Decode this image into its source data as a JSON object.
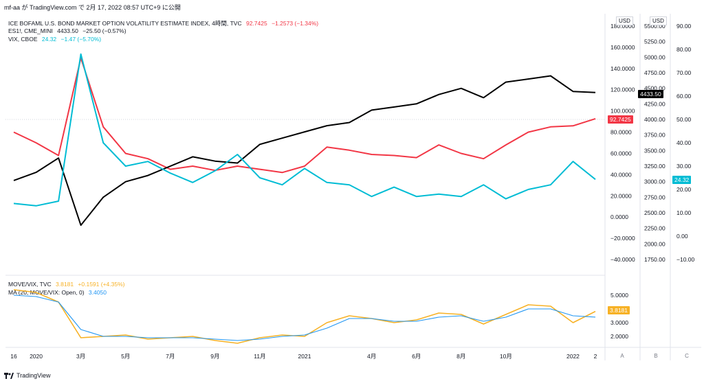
{
  "header": {
    "text": "mf-aa が TradingView.com で 2月 17, 2022 08:57 UTC+9 に公開"
  },
  "legend_top": [
    {
      "label": "ICE BOFAML U.S. BOND MARKET OPTION VOLATILITY ESTIMATE INDEX, 4時間, TVC",
      "value": "92.7425",
      "change": "−1.2573 (−1.34%)",
      "color": "#f23645"
    },
    {
      "label": "ES1!, CME_MINI",
      "value": "4433.50",
      "change": "−25.50 (−0.57%)",
      "color": "#131722"
    },
    {
      "label": "VIX, CBOE",
      "value": "24.32",
      "change": "−1.47 (−5.70%)",
      "color": "#00bcd4"
    }
  ],
  "legend_bottom": [
    {
      "label": "MOVE/VIX, TVC",
      "value": "3.8181",
      "change": "+0.1591 (+4.35%)",
      "color": "#f7b125"
    },
    {
      "label": "MA (20, MOVE/VIX: Open, 0)",
      "value": "3.4050",
      "change": "",
      "color": "#2196f3"
    }
  ],
  "axes": {
    "unit_label": "USD",
    "move_ticks": [
      "180.0000",
      "160.0000",
      "140.0000",
      "120.0000",
      "100.0000",
      "80.0000",
      "60.0000",
      "40.0000",
      "20.0000",
      "0.0000",
      "−20.0000",
      "−40.0000"
    ],
    "es_ticks": [
      "5500.00",
      "5250.00",
      "5000.00",
      "4750.00",
      "4500.00",
      "4250.00",
      "4000.00",
      "3750.00",
      "3500.00",
      "3250.00",
      "3000.00",
      "2750.00",
      "2500.00",
      "2250.00",
      "2000.00",
      "1750.00"
    ],
    "vix_ticks": [
      "90.00",
      "80.00",
      "70.00",
      "60.00",
      "50.00",
      "40.00",
      "30.00",
      "20.00",
      "10.00",
      "0.00",
      "−10.00"
    ],
    "ratio_ticks": [
      "5.0000",
      "4.0000",
      "3.0000",
      "2.0000"
    ],
    "x_ticks": [
      "16",
      "2020",
      "3月",
      "5月",
      "7月",
      "9月",
      "11月",
      "2021",
      "4月",
      "6月",
      "8月",
      "10月",
      "2022",
      "2"
    ],
    "tags": {
      "move": "92.7425",
      "es": "4433.50",
      "vix": "24.32",
      "ratio": "3.8181",
      "ma": "3.4050"
    }
  },
  "scale_buttons": [
    "A",
    "B",
    "C"
  ],
  "footer": {
    "brand": "TradingView"
  },
  "chart_data": [
    {
      "type": "line",
      "title": "",
      "x": [
        "2019-12",
        "2020-01",
        "2020-02",
        "2020-03",
        "2020-04",
        "2020-05",
        "2020-06",
        "2020-07",
        "2020-08",
        "2020-09",
        "2020-10",
        "2020-11",
        "2020-12",
        "2021-01",
        "2021-02",
        "2021-03",
        "2021-04",
        "2021-05",
        "2021-06",
        "2021-07",
        "2021-08",
        "2021-09",
        "2021-10",
        "2021-11",
        "2021-12",
        "2022-01",
        "2022-02"
      ],
      "series": [
        {
          "name": "ICE BOFAML U.S. BOND MARKET OPTION VOLATILITY ESTIMATE INDEX",
          "color": "#f23645",
          "axis": "move",
          "values": [
            80,
            70,
            58,
            150,
            85,
            60,
            55,
            45,
            48,
            44,
            48,
            45,
            42,
            48,
            66,
            63,
            59,
            58,
            56,
            68,
            60,
            55,
            68,
            80,
            85,
            86,
            92.74
          ]
        },
        {
          "name": "ES1!",
          "color": "#000000",
          "axis": "es",
          "values": [
            3020,
            3150,
            3380,
            2300,
            2750,
            3000,
            3100,
            3250,
            3400,
            3330,
            3300,
            3600,
            3700,
            3800,
            3900,
            3950,
            4150,
            4200,
            4250,
            4400,
            4500,
            4350,
            4600,
            4650,
            4700,
            4450,
            4433.5
          ]
        },
        {
          "name": "VIX",
          "color": "#00bcd4",
          "axis": "vix",
          "values": [
            14,
            13,
            15,
            78,
            40,
            30,
            32,
            27,
            23,
            28,
            35,
            25,
            22,
            29,
            23,
            22,
            17,
            21,
            17,
            18,
            17,
            22,
            16,
            20,
            22,
            32,
            24.32
          ]
        }
      ],
      "axis_ranges": {
        "move": [
          -40,
          180
        ],
        "es": [
          1750,
          5500
        ],
        "vix": [
          -10,
          90
        ]
      },
      "grid": false
    },
    {
      "type": "line",
      "title": "",
      "x": [
        "2019-12",
        "2020-01",
        "2020-02",
        "2020-03",
        "2020-04",
        "2020-05",
        "2020-06",
        "2020-07",
        "2020-08",
        "2020-09",
        "2020-10",
        "2020-11",
        "2020-12",
        "2021-01",
        "2021-02",
        "2021-03",
        "2021-04",
        "2021-05",
        "2021-06",
        "2021-07",
        "2021-08",
        "2021-09",
        "2021-10",
        "2021-11",
        "2021-12",
        "2022-01",
        "2022-02"
      ],
      "series": [
        {
          "name": "MOVE/VIX",
          "color": "#f7b125",
          "values": [
            5.4,
            5.2,
            4.5,
            1.9,
            2.0,
            2.1,
            1.8,
            1.9,
            2.0,
            1.7,
            1.5,
            1.9,
            2.1,
            2.0,
            3.0,
            3.5,
            3.3,
            3.0,
            3.2,
            3.7,
            3.6,
            2.9,
            3.6,
            4.3,
            4.2,
            3.0,
            3.8181
          ]
        },
        {
          "name": "MA (20, MOVE/VIX: Open, 0)",
          "color": "#2196f3",
          "values": [
            5.0,
            4.9,
            4.5,
            2.5,
            2.0,
            2.0,
            1.9,
            1.9,
            1.9,
            1.8,
            1.7,
            1.8,
            2.0,
            2.1,
            2.6,
            3.3,
            3.3,
            3.1,
            3.1,
            3.4,
            3.5,
            3.1,
            3.4,
            4.0,
            4.0,
            3.5,
            3.405
          ]
        }
      ],
      "ylim": [
        1.5,
        5.5
      ],
      "grid": false
    }
  ]
}
